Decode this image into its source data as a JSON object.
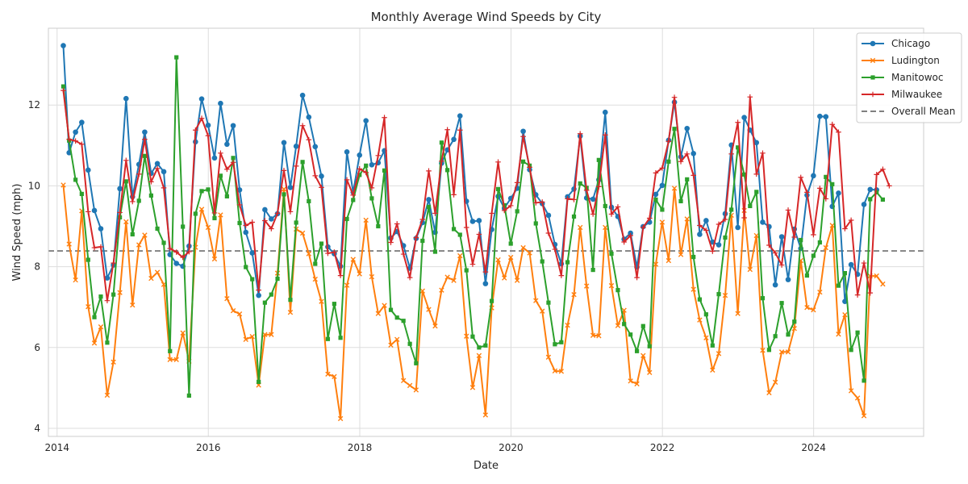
{
  "chart_data": {
    "type": "line",
    "title": "Monthly Average Wind Speeds by City",
    "xlabel": "Date",
    "ylabel": "Wind Speed (mph)",
    "xlim": [
      "2013-11-20",
      "2025-06-15"
    ],
    "ylim": [
      3.8,
      13.9
    ],
    "x_ticks": [
      "2014-01-01",
      "2016-01-01",
      "2018-01-01",
      "2020-01-01",
      "2022-01-01",
      "2024-01-01"
    ],
    "x_tick_labels": [
      "2014",
      "2016",
      "2018",
      "2020",
      "2022",
      "2024"
    ],
    "y_ticks": [
      4,
      6,
      8,
      10,
      12
    ],
    "y_tick_labels": [
      "4",
      "6",
      "8",
      "10",
      "12"
    ],
    "grid": true,
    "legend_position": "top-right",
    "x_start": "2014-01-31",
    "x_frequency": "month-end",
    "series": [
      {
        "name": "Chicago",
        "color": "#1f77b4",
        "marker": "circle",
        "values": [
          13.47,
          10.82,
          11.33,
          11.57,
          10.39,
          9.39,
          8.94,
          7.72,
          8.04,
          9.93,
          12.16,
          9.73,
          10.53,
          11.33,
          10.31,
          10.55,
          10.35,
          8.3,
          8.08,
          8.01,
          8.51,
          11.09,
          12.15,
          11.5,
          10.69,
          12.04,
          11.03,
          11.49,
          9.9,
          8.85,
          8.34,
          7.29,
          9.41,
          9.18,
          9.31,
          11.07,
          9.96,
          10.98,
          12.24,
          11.7,
          10.97,
          10.24,
          8.49,
          8.32,
          8.01,
          10.84,
          9.84,
          10.76,
          11.61,
          10.52,
          10.57,
          10.87,
          8.71,
          8.87,
          8.52,
          7.96,
          8.7,
          9.09,
          9.66,
          8.85,
          10.56,
          10.89,
          11.15,
          11.73,
          9.62,
          9.12,
          9.14,
          7.58,
          8.92,
          9.74,
          9.45,
          9.69,
          9.94,
          11.35,
          10.4,
          9.78,
          9.56,
          9.27,
          8.55,
          8.07,
          9.73,
          9.92,
          11.23,
          9.7,
          9.67,
          10.15,
          11.82,
          9.47,
          9.24,
          8.68,
          8.83,
          7.99,
          8.99,
          9.1,
          9.79,
          10.01,
          11.13,
          12.07,
          10.72,
          11.42,
          10.8,
          8.8,
          9.14,
          8.61,
          8.54,
          9.31,
          11.01,
          8.97,
          11.69,
          11.38,
          11.07,
          9.1,
          8.99,
          7.55,
          8.74,
          7.68,
          8.93,
          8.45,
          9.77,
          10.25,
          11.72,
          11.71,
          9.49,
          9.82,
          7.14,
          8.05,
          7.81,
          9.54,
          9.91,
          9.9
        ]
      },
      {
        "name": "Ludington",
        "color": "#ff7f0e",
        "marker": "x",
        "values": [
          10.02,
          8.56,
          7.67,
          9.38,
          7.01,
          6.11,
          6.51,
          4.82,
          5.64,
          7.36,
          9.11,
          7.05,
          8.54,
          8.78,
          7.71,
          7.86,
          7.56,
          5.7,
          5.7,
          6.36,
          5.66,
          8.48,
          9.42,
          8.97,
          8.19,
          9.28,
          7.21,
          6.91,
          6.83,
          6.2,
          6.27,
          5.07,
          6.32,
          6.32,
          7.84,
          9.92,
          6.87,
          8.93,
          8.83,
          8.32,
          7.69,
          7.14,
          5.34,
          5.28,
          4.24,
          7.54,
          8.18,
          7.82,
          9.15,
          7.75,
          6.84,
          7.04,
          6.06,
          6.2,
          5.18,
          5.06,
          4.95,
          7.4,
          6.94,
          6.53,
          7.42,
          7.74,
          7.66,
          8.27,
          6.28,
          5.01,
          5.8,
          4.33,
          6.98,
          8.17,
          7.72,
          8.23,
          7.66,
          8.47,
          8.34,
          7.16,
          6.9,
          5.76,
          5.42,
          5.41,
          6.55,
          7.31,
          8.97,
          7.52,
          6.3,
          6.29,
          8.97,
          7.53,
          6.54,
          6.92,
          5.17,
          5.1,
          5.8,
          5.38,
          8.06,
          9.1,
          8.15,
          9.94,
          8.3,
          9.18,
          7.44,
          6.68,
          6.24,
          5.44,
          5.85,
          7.29,
          9.27,
          6.84,
          9.39,
          7.93,
          8.77,
          5.93,
          4.88,
          5.14,
          5.89,
          5.89,
          6.47,
          8.15,
          6.99,
          6.93,
          7.37,
          8.47,
          9.02,
          6.33,
          6.81,
          4.93,
          4.75,
          4.31,
          7.77,
          7.77,
          7.57
        ]
      },
      {
        "name": "Manitowoc",
        "color": "#2ca02c",
        "marker": "square",
        "values": [
          12.46,
          11.12,
          10.15,
          9.8,
          8.17,
          6.75,
          7.26,
          6.12,
          7.31,
          9.22,
          10.11,
          8.8,
          9.63,
          10.74,
          9.76,
          8.94,
          8.59,
          5.91,
          13.18,
          8.99,
          4.81,
          9.31,
          9.87,
          9.91,
          9.2,
          10.25,
          9.74,
          10.69,
          9.08,
          7.99,
          7.69,
          5.15,
          7.11,
          7.31,
          7.7,
          9.79,
          7.18,
          9.09,
          10.59,
          9.62,
          8.07,
          8.57,
          6.21,
          7.08,
          6.24,
          9.18,
          9.65,
          10.27,
          10.5,
          9.69,
          9.0,
          10.38,
          6.93,
          6.74,
          6.66,
          6.09,
          5.61,
          8.64,
          9.48,
          8.37,
          11.07,
          10.39,
          8.93,
          8.79,
          7.91,
          6.27,
          6.0,
          6.05,
          7.15,
          9.92,
          9.52,
          8.57,
          9.37,
          10.6,
          10.5,
          9.07,
          8.13,
          7.11,
          6.08,
          6.13,
          8.11,
          9.24,
          10.06,
          9.95,
          7.92,
          10.64,
          9.5,
          8.32,
          7.42,
          6.58,
          6.32,
          5.91,
          6.53,
          6.03,
          9.66,
          9.41,
          10.6,
          11.41,
          9.62,
          10.16,
          8.24,
          7.19,
          6.82,
          6.05,
          7.32,
          8.72,
          9.41,
          10.95,
          10.28,
          9.5,
          9.85,
          7.22,
          5.94,
          6.28,
          7.1,
          6.32,
          6.64,
          8.66,
          7.78,
          8.27,
          8.6,
          10.22,
          10.04,
          7.53,
          7.84,
          5.94,
          6.37,
          5.18,
          9.67,
          9.84,
          9.66
        ]
      },
      {
        "name": "Milwaukee",
        "color": "#d62728",
        "marker": "plus",
        "values": [
          12.36,
          11.15,
          11.11,
          11.03,
          9.36,
          8.47,
          8.49,
          7.16,
          8.09,
          9.34,
          10.63,
          9.61,
          10.29,
          11.15,
          10.1,
          10.43,
          9.95,
          8.45,
          8.36,
          8.23,
          8.37,
          11.38,
          11.67,
          11.24,
          9.33,
          10.81,
          10.41,
          10.58,
          9.53,
          9.02,
          9.1,
          7.42,
          9.14,
          8.94,
          9.32,
          10.38,
          9.36,
          10.49,
          11.49,
          11.14,
          10.25,
          9.96,
          8.33,
          8.36,
          7.78,
          10.15,
          9.77,
          10.42,
          10.33,
          9.95,
          10.75,
          11.69,
          8.6,
          9.06,
          8.31,
          7.73,
          8.72,
          9.17,
          10.37,
          9.32,
          10.61,
          11.39,
          9.78,
          11.38,
          8.97,
          8.06,
          8.8,
          7.87,
          9.32,
          10.59,
          9.39,
          9.51,
          10.08,
          11.22,
          10.46,
          9.58,
          9.6,
          8.83,
          8.43,
          7.78,
          9.68,
          9.66,
          11.29,
          9.89,
          9.3,
          9.98,
          11.26,
          9.3,
          9.48,
          8.61,
          8.77,
          7.73,
          8.97,
          9.2,
          10.32,
          10.44,
          11.1,
          12.19,
          10.6,
          10.79,
          10.26,
          9.02,
          8.9,
          8.38,
          9.05,
          9.17,
          10.79,
          11.57,
          9.21,
          12.2,
          10.29,
          10.81,
          8.53,
          8.34,
          8.04,
          9.4,
          8.73,
          10.21,
          9.84,
          8.79,
          9.94,
          9.68,
          11.52,
          11.33,
          8.94,
          9.15,
          7.3,
          8.09,
          7.35,
          10.28,
          10.41,
          10.0
        ]
      }
    ],
    "reference_lines": [
      {
        "name": "Overall Mean",
        "value": 8.39,
        "color": "#808080",
        "style": "dashed"
      }
    ]
  }
}
